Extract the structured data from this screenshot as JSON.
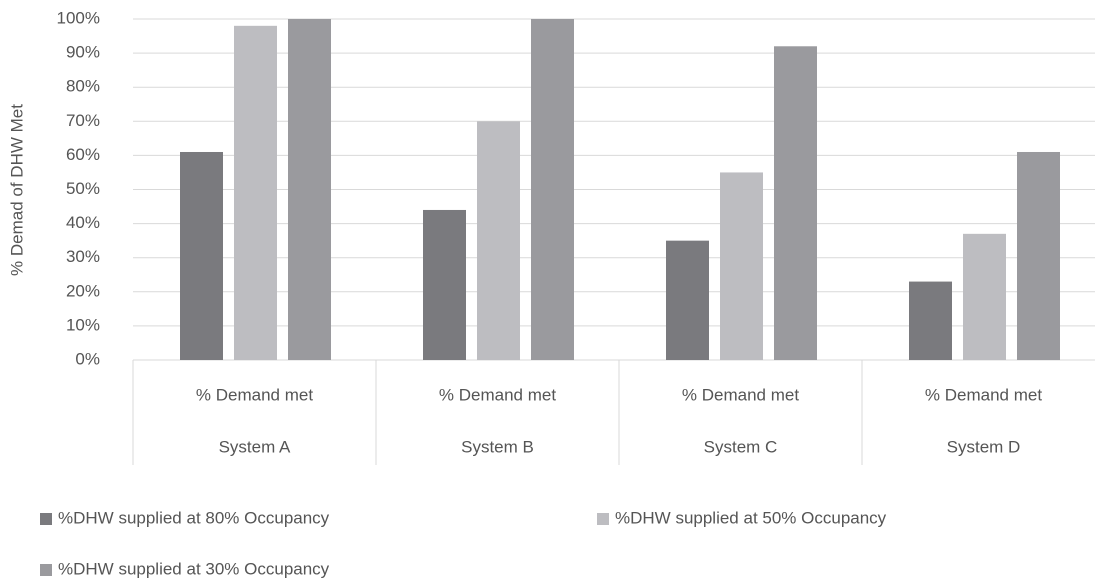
{
  "chart_data": {
    "type": "bar",
    "y_axis_label": "% Demad of DHW Met",
    "categories": [
      "% Demand met",
      "% Demand met",
      "% Demand met",
      "% Demand met"
    ],
    "groups": [
      "System A",
      "System B",
      "System C",
      "System D"
    ],
    "series": [
      {
        "name": "%DHW supplied at 80% Occupancy",
        "color": "#7a7a7e",
        "values": [
          61,
          44,
          35,
          23
        ]
      },
      {
        "name": "%DHW supplied at  50% Occupancy",
        "color": "#bdbdc1",
        "values": [
          98,
          70,
          55,
          37
        ]
      },
      {
        "name": "%DHW supplied at 30% Occupancy",
        "color": "#9a9a9e",
        "values": [
          100,
          100,
          92,
          61
        ]
      }
    ],
    "ylim": [
      0,
      100
    ],
    "yticks": [
      {
        "value": 0,
        "label": "0%"
      },
      {
        "value": 10,
        "label": "10%"
      },
      {
        "value": 20,
        "label": "20%"
      },
      {
        "value": 30,
        "label": "30%"
      },
      {
        "value": 40,
        "label": "40%"
      },
      {
        "value": 50,
        "label": "50%"
      },
      {
        "value": 60,
        "label": "60%"
      },
      {
        "value": 70,
        "label": "70%"
      },
      {
        "value": 80,
        "label": "80%"
      },
      {
        "value": 90,
        "label": "90%"
      },
      {
        "value": 100,
        "label": "100%"
      }
    ],
    "grid": true,
    "legend": "bottom"
  }
}
